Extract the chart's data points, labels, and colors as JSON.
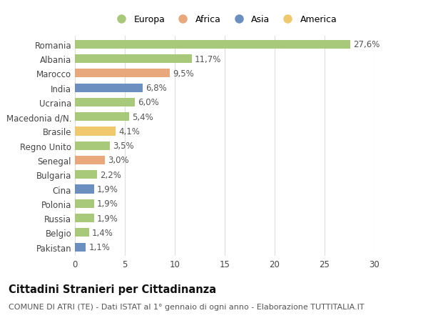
{
  "countries": [
    "Romania",
    "Albania",
    "Marocco",
    "India",
    "Ucraina",
    "Macedonia d/N.",
    "Brasile",
    "Regno Unito",
    "Senegal",
    "Bulgaria",
    "Cina",
    "Polonia",
    "Russia",
    "Belgio",
    "Pakistan"
  ],
  "values": [
    27.6,
    11.7,
    9.5,
    6.8,
    6.0,
    5.4,
    4.1,
    3.5,
    3.0,
    2.2,
    1.9,
    1.9,
    1.9,
    1.4,
    1.1
  ],
  "labels": [
    "27,6%",
    "11,7%",
    "9,5%",
    "6,8%",
    "6,0%",
    "5,4%",
    "4,1%",
    "3,5%",
    "3,0%",
    "2,2%",
    "1,9%",
    "1,9%",
    "1,9%",
    "1,4%",
    "1,1%"
  ],
  "continents": [
    "Europa",
    "Europa",
    "Africa",
    "Asia",
    "Europa",
    "Europa",
    "America",
    "Europa",
    "Africa",
    "Europa",
    "Asia",
    "Europa",
    "Europa",
    "Europa",
    "Asia"
  ],
  "continent_colors": {
    "Europa": "#a8c87a",
    "Africa": "#e8a87c",
    "Asia": "#6b8fbf",
    "America": "#f0c96e"
  },
  "legend_order": [
    "Europa",
    "Africa",
    "Asia",
    "America"
  ],
  "title": "Cittadini Stranieri per Cittadinanza",
  "subtitle": "COMUNE DI ATRI (TE) - Dati ISTAT al 1° gennaio di ogni anno - Elaborazione TUTTITALIA.IT",
  "xlim": [
    0,
    30
  ],
  "xticks": [
    0,
    5,
    10,
    15,
    20,
    25,
    30
  ],
  "background_color": "#ffffff",
  "bar_height": 0.6,
  "grid_color": "#dddddd",
  "label_fontsize": 8.5,
  "tick_fontsize": 8.5,
  "title_fontsize": 10.5,
  "subtitle_fontsize": 8.0
}
